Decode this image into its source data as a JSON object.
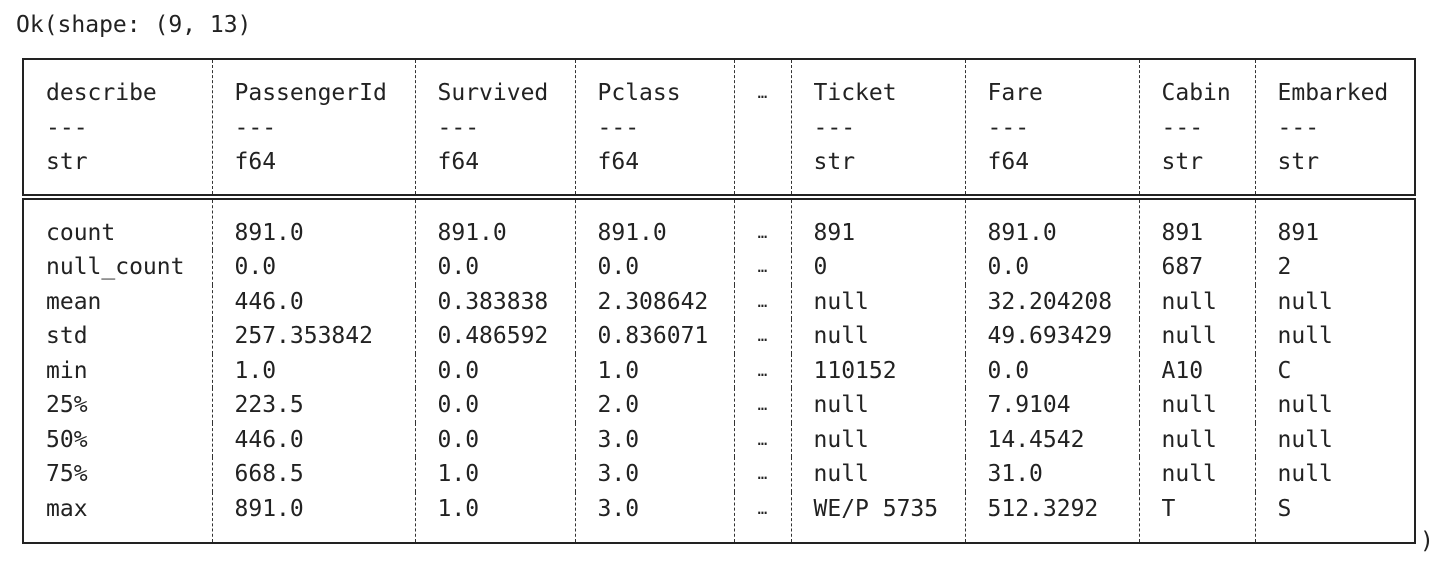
{
  "prefix": "Ok(shape: (9, 13)",
  "suffix": ")",
  "table": {
    "columns": [
      {
        "name": "describe",
        "separator": "---",
        "dtype": "str"
      },
      {
        "name": "PassengerId",
        "separator": "---",
        "dtype": "f64"
      },
      {
        "name": "Survived",
        "separator": "---",
        "dtype": "f64"
      },
      {
        "name": "Pclass",
        "separator": "---",
        "dtype": "f64"
      },
      {
        "name": "…"
      },
      {
        "name": "Ticket",
        "separator": "---",
        "dtype": "str"
      },
      {
        "name": "Fare",
        "separator": "---",
        "dtype": "f64"
      },
      {
        "name": "Cabin",
        "separator": "---",
        "dtype": "str"
      },
      {
        "name": "Embarked",
        "separator": "---",
        "dtype": "str"
      }
    ],
    "rows": [
      [
        "count",
        "891.0",
        "891.0",
        "891.0",
        "…",
        "891",
        "891.0",
        "891",
        "891"
      ],
      [
        "null_count",
        "0.0",
        "0.0",
        "0.0",
        "…",
        "0",
        "0.0",
        "687",
        "2"
      ],
      [
        "mean",
        "446.0",
        "0.383838",
        "2.308642",
        "…",
        "null",
        "32.204208",
        "null",
        "null"
      ],
      [
        "std",
        "257.353842",
        "0.486592",
        "0.836071",
        "…",
        "null",
        "49.693429",
        "null",
        "null"
      ],
      [
        "min",
        "1.0",
        "0.0",
        "1.0",
        "…",
        "110152",
        "0.0",
        "A10",
        "C"
      ],
      [
        "25%",
        "223.5",
        "0.0",
        "2.0",
        "…",
        "null",
        "7.9104",
        "null",
        "null"
      ],
      [
        "50%",
        "446.0",
        "0.0",
        "3.0",
        "…",
        "null",
        "14.4542",
        "null",
        "null"
      ],
      [
        "75%",
        "668.5",
        "1.0",
        "3.0",
        "…",
        "null",
        "31.0",
        "null",
        "null"
      ],
      [
        "max",
        "891.0",
        "1.0",
        "3.0",
        "…",
        "WE/P 5735",
        "512.3292",
        "T",
        "S"
      ]
    ]
  }
}
